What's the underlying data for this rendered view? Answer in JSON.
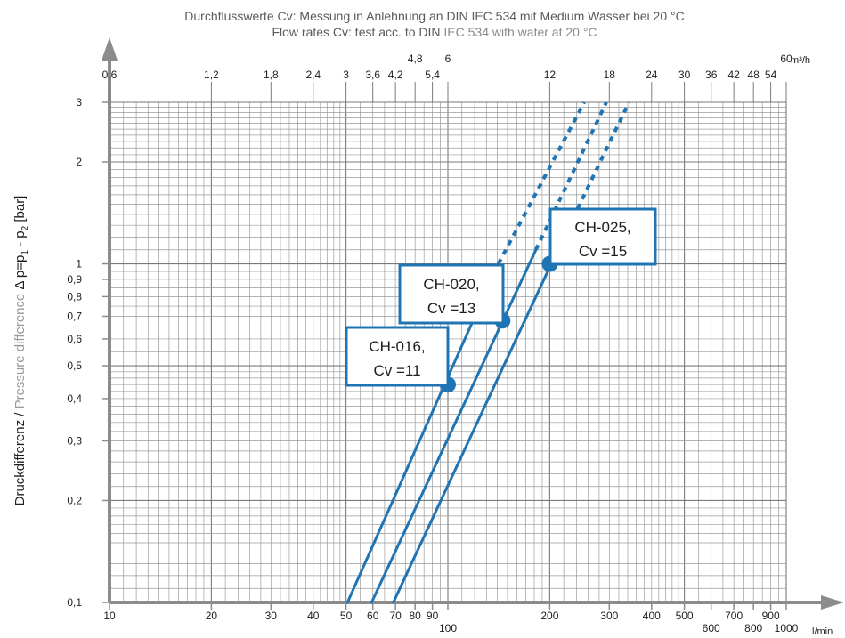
{
  "title": {
    "line1": "Durchflusswerte Cv: Messung in Anlehnung an DIN IEC 534 mit Medium Wasser bei 20 °C",
    "line2_a": "Flow rates Cv: test acc. to ",
    "line2_b": "DIN",
    "line2_c": " IEC 534 with water at 20 °C"
  },
  "colors": {
    "series": "#1f74b4",
    "axis": "#8c8c8c",
    "grid": "#9a9a9a",
    "grid_major": "#7a7a7a"
  },
  "chart_data": {
    "type": "line",
    "x_scale": "log",
    "y_scale": "log",
    "xlim": [
      10,
      1000
    ],
    "ylim": [
      0.1,
      3
    ],
    "x_unit": "l/min",
    "x2_unit": "m³/h",
    "ylabel_a": "Druckdifferenz / ",
    "ylabel_b": "Pressure difference",
    "ylabel_c": "  Δ p=p",
    "ylabel_sub1": "1",
    "ylabel_d": " - p",
    "ylabel_sub2": "2",
    "ylabel_e": " [bar]",
    "x_ticks": [
      {
        "v": 10,
        "label": "10",
        "row": 0
      },
      {
        "v": 20,
        "label": "20",
        "row": 0
      },
      {
        "v": 30,
        "label": "30",
        "row": 0
      },
      {
        "v": 40,
        "label": "40",
        "row": 0
      },
      {
        "v": 50,
        "label": "50",
        "row": 0
      },
      {
        "v": 60,
        "label": "60",
        "row": 0
      },
      {
        "v": 70,
        "label": "70",
        "row": 0
      },
      {
        "v": 80,
        "label": "80",
        "row": 0
      },
      {
        "v": 90,
        "label": "90",
        "row": 0
      },
      {
        "v": 100,
        "label": "100",
        "row": 1
      },
      {
        "v": 200,
        "label": "200",
        "row": 0
      },
      {
        "v": 300,
        "label": "300",
        "row": 0
      },
      {
        "v": 400,
        "label": "400",
        "row": 0
      },
      {
        "v": 500,
        "label": "500",
        "row": 0
      },
      {
        "v": 600,
        "label": "600",
        "row": 1
      },
      {
        "v": 700,
        "label": "700",
        "row": 0
      },
      {
        "v": 800,
        "label": "800",
        "row": 1
      },
      {
        "v": 900,
        "label": "900",
        "row": 0
      },
      {
        "v": 1000,
        "label": "1000",
        "row": 1
      }
    ],
    "x2_ticks": [
      {
        "m3h": 0.6,
        "label": "0,6",
        "row": 0
      },
      {
        "m3h": 1.2,
        "label": "1,2",
        "row": 0
      },
      {
        "m3h": 1.8,
        "label": "1,8",
        "row": 0
      },
      {
        "m3h": 2.4,
        "label": "2,4",
        "row": 0
      },
      {
        "m3h": 3,
        "label": "3",
        "row": 0
      },
      {
        "m3h": 3.6,
        "label": "3,6",
        "row": 0
      },
      {
        "m3h": 4.2,
        "label": "4,2",
        "row": 0
      },
      {
        "m3h": 4.8,
        "label": "4,8",
        "row": 1
      },
      {
        "m3h": 5.4,
        "label": "5,4",
        "row": 0
      },
      {
        "m3h": 6,
        "label": "6",
        "row": 1
      },
      {
        "m3h": 12,
        "label": "12",
        "row": 0
      },
      {
        "m3h": 18,
        "label": "18",
        "row": 0
      },
      {
        "m3h": 24,
        "label": "24",
        "row": 0
      },
      {
        "m3h": 30,
        "label": "30",
        "row": 0
      },
      {
        "m3h": 36,
        "label": "36",
        "row": 0
      },
      {
        "m3h": 42,
        "label": "42",
        "row": 0
      },
      {
        "m3h": 48,
        "label": "48",
        "row": 0
      },
      {
        "m3h": 54,
        "label": "54",
        "row": 0
      },
      {
        "m3h": 60,
        "label": "60",
        "row": 1
      }
    ],
    "y_ticks": [
      {
        "v": 0.1,
        "label": "0,1"
      },
      {
        "v": 0.2,
        "label": "0,2"
      },
      {
        "v": 0.3,
        "label": "0,3"
      },
      {
        "v": 0.4,
        "label": "0,4"
      },
      {
        "v": 0.5,
        "label": "0,5"
      },
      {
        "v": 0.6,
        "label": "0,6"
      },
      {
        "v": 0.7,
        "label": "0,7"
      },
      {
        "v": 0.8,
        "label": "0,8"
      },
      {
        "v": 0.9,
        "label": "0,9"
      },
      {
        "v": 1,
        "label": "1"
      },
      {
        "v": 2,
        "label": "2"
      },
      {
        "v": 3,
        "label": "3"
      }
    ],
    "series": [
      {
        "id": "ch016",
        "label1": "CH-016,",
        "label2": "Cv =11",
        "point": [
          100,
          0.44
        ],
        "solid": [
          [
            50.5,
            0.1
          ],
          [
            141,
            1.0
          ]
        ],
        "dashed": [
          [
            141,
            1.0
          ],
          [
            253,
            3.0
          ]
        ]
      },
      {
        "id": "ch020",
        "label1": "CH-020,",
        "label2": "Cv =13",
        "point": [
          145,
          0.68
        ],
        "solid": [
          [
            59.5,
            0.1
          ],
          [
            182,
            1.1
          ]
        ],
        "dashed": [
          [
            182,
            1.1
          ],
          [
            294,
            3.0
          ]
        ]
      },
      {
        "id": "ch025",
        "label1": "CH-025,",
        "label2": "Cv =15",
        "point": [
          200,
          1.0
        ],
        "solid": [
          [
            69,
            0.1
          ],
          [
            213,
            1.12
          ]
        ],
        "dashed": [
          [
            213,
            1.12
          ],
          [
            343,
            3.0
          ]
        ]
      }
    ]
  }
}
